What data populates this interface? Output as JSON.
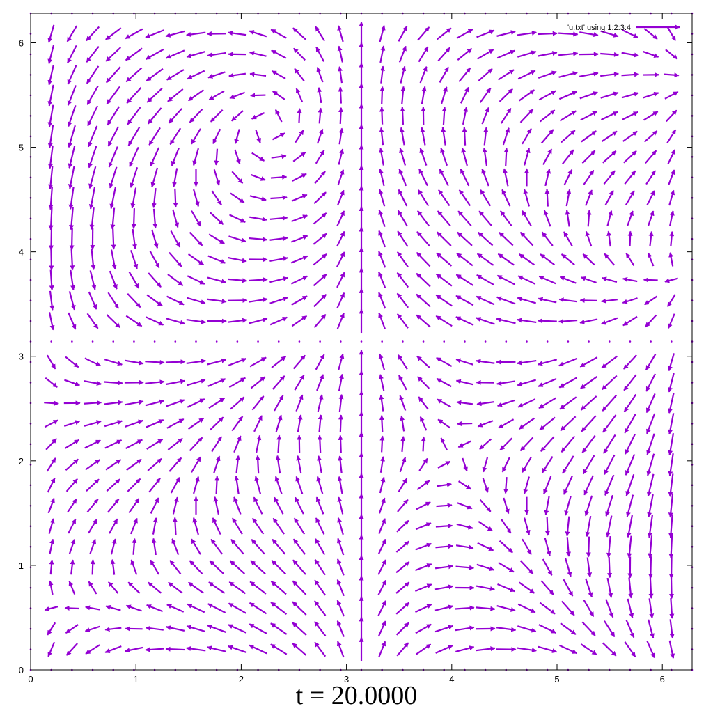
{
  "chart_data": {
    "type": "vector_field",
    "title": "t = 20.0000",
    "legend": "'u.txt' using 1:2:3:4",
    "legend_position": "top-right",
    "series_color": "#9400d3",
    "xlim": [
      0,
      6.283
    ],
    "ylim": [
      0,
      6.283
    ],
    "xticks": [
      0,
      1,
      2,
      3,
      4,
      5,
      6
    ],
    "yticks": [
      0,
      1,
      2,
      3,
      4,
      5,
      6
    ],
    "grid": false,
    "sample_rows": [
      {
        "y": 0.2,
        "vectors": [
          [
            0.2,
            0.2,
            0.14,
            0.09
          ],
          [
            1.0,
            0.2,
            0.14,
            0.12
          ],
          [
            2.0,
            0.2,
            0.11,
            0.14
          ],
          [
            2.9,
            0.2,
            0.02,
            0.18
          ],
          [
            3.14,
            0.2,
            0.0,
            0.2
          ],
          [
            3.4,
            0.2,
            -0.02,
            0.18
          ],
          [
            4.3,
            0.2,
            -0.11,
            0.14
          ],
          [
            5.3,
            0.2,
            -0.14,
            0.12
          ],
          [
            6.1,
            0.2,
            -0.14,
            0.09
          ]
        ]
      },
      {
        "y": 3.5,
        "vectors": [
          [
            0.3,
            3.5,
            -0.12,
            0.08
          ],
          [
            1.0,
            3.5,
            -0.16,
            0.0
          ],
          [
            2.2,
            3.5,
            0.12,
            0.0
          ],
          [
            3.14,
            3.5,
            0.0,
            0.2
          ],
          [
            4.1,
            3.5,
            -0.12,
            0.0
          ],
          [
            5.3,
            3.5,
            0.16,
            0.0
          ],
          [
            6.0,
            3.5,
            0.12,
            0.08
          ]
        ]
      },
      {
        "y": 6.1,
        "vectors": [
          [
            0.1,
            6.1,
            0.12,
            -0.14
          ],
          [
            1.0,
            6.1,
            -0.12,
            0.14
          ],
          [
            2.9,
            6.1,
            -0.02,
            0.18
          ],
          [
            3.14,
            6.1,
            0.0,
            0.2
          ],
          [
            3.4,
            6.1,
            0.02,
            0.18
          ],
          [
            5.3,
            6.1,
            0.12,
            0.14
          ],
          [
            6.2,
            6.1,
            -0.12,
            -0.14
          ]
        ]
      }
    ]
  },
  "caption": "t = 20.0000"
}
